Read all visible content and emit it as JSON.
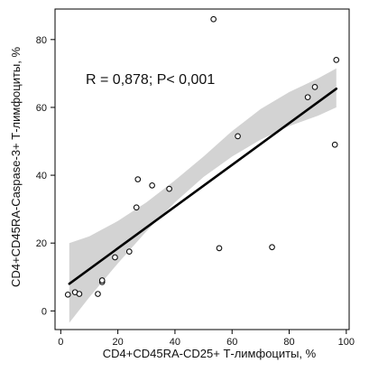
{
  "chart_data": {
    "type": "scatter",
    "xlabel": "CD4+CD45RA-CD25+ Т-лимфоциты, %",
    "ylabel": "CD4+CD45RA-Caspase-3+ Т-лимфоциты, %",
    "annotation": "R = 0,878; P< 0,001",
    "xlim": [
      -2,
      101
    ],
    "ylim": [
      -5.5,
      89
    ],
    "x_ticks": [
      0,
      20,
      40,
      60,
      80,
      100
    ],
    "y_ticks": [
      0,
      20,
      40,
      60,
      80
    ],
    "grid": false,
    "legend": "none",
    "points": [
      {
        "x": 2.5,
        "y": 4.8
      },
      {
        "x": 5.0,
        "y": 5.5
      },
      {
        "x": 6.5,
        "y": 5.0
      },
      {
        "x": 13.0,
        "y": 5.0
      },
      {
        "x": 14.5,
        "y": 8.5
      },
      {
        "x": 14.5,
        "y": 9.0
      },
      {
        "x": 19.0,
        "y": 15.8
      },
      {
        "x": 24.0,
        "y": 17.5
      },
      {
        "x": 26.5,
        "y": 30.5
      },
      {
        "x": 27.0,
        "y": 38.8
      },
      {
        "x": 32.0,
        "y": 37.0
      },
      {
        "x": 38.0,
        "y": 36.0
      },
      {
        "x": 53.5,
        "y": 86.0
      },
      {
        "x": 55.5,
        "y": 18.5
      },
      {
        "x": 62.0,
        "y": 51.5
      },
      {
        "x": 74.0,
        "y": 18.8
      },
      {
        "x": 86.5,
        "y": 63.0
      },
      {
        "x": 89.0,
        "y": 66.0
      },
      {
        "x": 96.0,
        "y": 49.0
      },
      {
        "x": 96.5,
        "y": 74.0
      }
    ],
    "fit_line": {
      "x": [
        3,
        96.5
      ],
      "y": [
        8.0,
        65.5
      ]
    },
    "confidence_band": {
      "x": [
        3,
        10,
        20,
        30,
        40,
        50,
        60,
        70,
        80,
        90,
        96.5
      ],
      "lower": [
        -3.5,
        4.0,
        14.0,
        23.5,
        32.0,
        39.5,
        45.5,
        50.5,
        54.5,
        57.5,
        60.0
      ],
      "upper": [
        20.0,
        22.0,
        26.5,
        32.0,
        38.5,
        45.5,
        53.0,
        59.5,
        64.5,
        68.5,
        71.5
      ]
    },
    "colors": {
      "points": "#111111",
      "line": "#000000",
      "band": "#d3d3d3",
      "axes": "#000000"
    }
  }
}
